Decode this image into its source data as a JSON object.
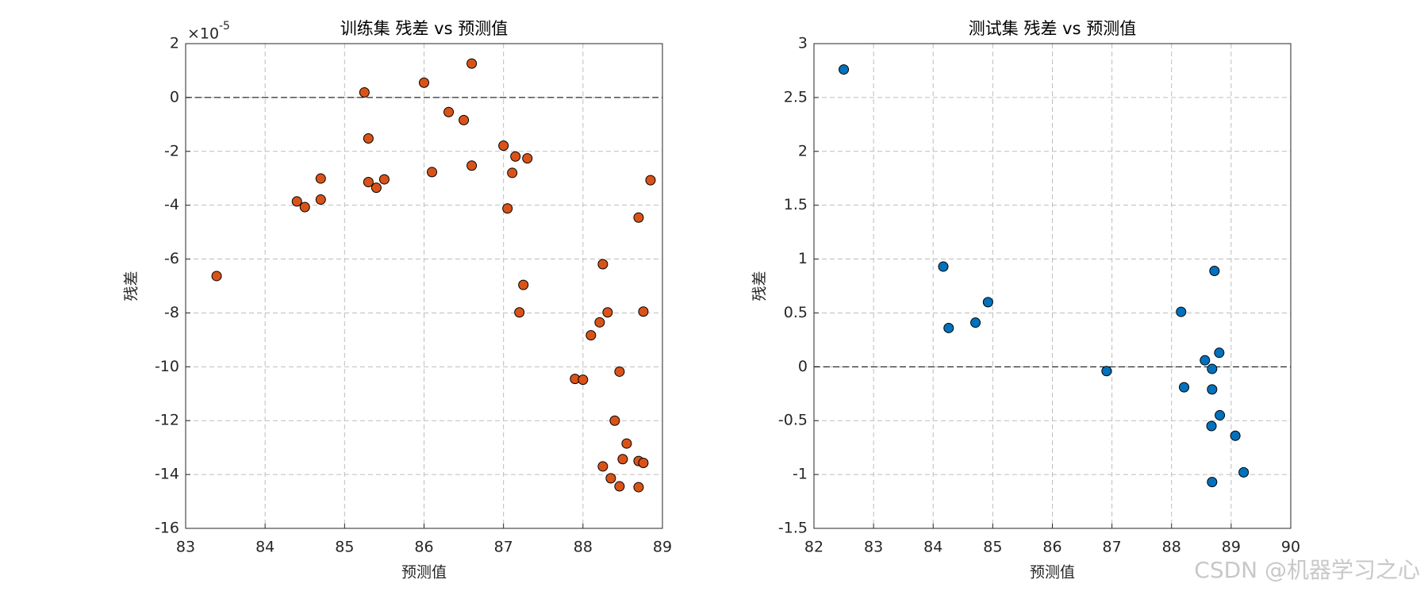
{
  "chart_data": [
    {
      "type": "scatter",
      "title": "训练集 残差 vs 预测值",
      "xlabel": "预测值",
      "ylabel": "残差",
      "y_multiplier": {
        "base": "×10",
        "exponent": "-5"
      },
      "color": "#d95319",
      "grid": true,
      "hline": 0,
      "xlim": [
        83,
        89
      ],
      "xticks": [
        83,
        84,
        85,
        86,
        87,
        88,
        89
      ],
      "ylim": [
        -16,
        2
      ],
      "yticks": [
        -16,
        -14,
        -12,
        -10,
        -8,
        -6,
        -4,
        -2,
        0,
        2
      ],
      "x": [
        83.39,
        84.4,
        84.5,
        84.7,
        84.7,
        85.25,
        85.3,
        85.3,
        85.4,
        85.5,
        86.0,
        86.1,
        86.31,
        86.5,
        86.6,
        86.6,
        87.0,
        87.05,
        87.11,
        87.15,
        87.3,
        87.2,
        87.25,
        88.25,
        88.31,
        88.21,
        88.1,
        87.9,
        88.0,
        88.46,
        88.7,
        88.76,
        88.85,
        88.4,
        88.55,
        88.5,
        88.25,
        88.35,
        88.46,
        88.7,
        88.76,
        88.7
      ],
      "values": [
        -6.63,
        -3.86,
        -4.07,
        -3.01,
        -3.79,
        0.19,
        -1.52,
        -3.14,
        -3.35,
        -3.04,
        0.55,
        -2.77,
        -0.54,
        -0.84,
        1.26,
        -2.53,
        -1.79,
        -4.12,
        -2.8,
        -2.19,
        -2.26,
        -7.98,
        -6.96,
        -6.19,
        -7.98,
        -8.35,
        -8.83,
        -10.45,
        -10.48,
        -10.18,
        -4.46,
        -7.95,
        -3.07,
        -12.0,
        -12.85,
        -13.43,
        -13.7,
        -14.14,
        -14.44,
        -13.5,
        -13.57,
        -14.47
      ]
    },
    {
      "type": "scatter",
      "title": "测试集 残差 vs 预测值",
      "xlabel": "预测值",
      "ylabel": "残差",
      "color": "#0072bd",
      "grid": true,
      "hline": 0,
      "xlim": [
        82,
        90
      ],
      "xticks": [
        82,
        83,
        84,
        85,
        86,
        87,
        88,
        89,
        90
      ],
      "ylim": [
        -1.5,
        3
      ],
      "yticks": [
        -1.5,
        -1,
        -0.5,
        0,
        0.5,
        1,
        1.5,
        2,
        2.5,
        3
      ],
      "x": [
        82.5,
        84.17,
        84.26,
        84.71,
        84.92,
        86.91,
        88.16,
        88.21,
        88.56,
        88.68,
        88.72,
        88.8,
        88.68,
        88.81,
        88.67,
        89.07,
        88.68,
        89.21
      ],
      "values": [
        2.76,
        0.93,
        0.36,
        0.41,
        0.6,
        -0.04,
        0.51,
        -0.19,
        0.06,
        -0.02,
        0.89,
        0.13,
        -0.21,
        -0.45,
        -0.55,
        -0.64,
        -1.07,
        -0.98
      ]
    }
  ],
  "watermark": "CSDN @机器学习之心"
}
